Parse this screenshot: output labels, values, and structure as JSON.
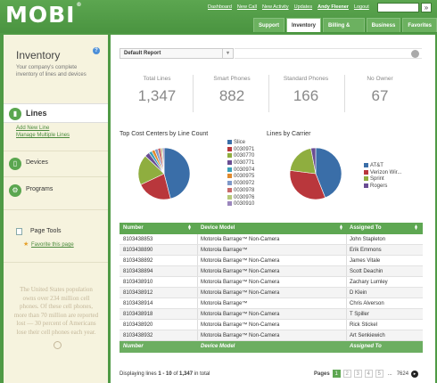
{
  "header": {
    "logo": "MOBI",
    "logo_mark": "®",
    "links": [
      "Dashboard",
      "New Call",
      "New Activity",
      "Updates"
    ],
    "user": "Andy Fleener",
    "logout": "Logout",
    "search_button": "»",
    "tabs": [
      "Support",
      "Inventory",
      "Billing & Usage",
      "Business",
      "Favorites"
    ],
    "active_tab": "Inventory"
  },
  "sidebar": {
    "title": "Inventory",
    "description": "Your company's complete inventory of lines and devices",
    "nav": {
      "lines": "Lines",
      "devices": "Devices",
      "programs": "Programs"
    },
    "links": [
      "Add New Line",
      "Manage Multiple Lines"
    ],
    "page_tools": {
      "title": "Page Tools",
      "favorite": "Favorite this page"
    },
    "fact": "The United States population owns over 234 million cell phones. Of these cell phones, more than 70 million are reported lost — 30 percent of Americans lose their cell phones each year."
  },
  "main": {
    "report_select": "Default Report",
    "kpis": [
      {
        "label": "Total Lines",
        "value": "1,347"
      },
      {
        "label": "Smart Phones",
        "value": "882"
      },
      {
        "label": "Standard Phones",
        "value": "166"
      },
      {
        "label": "No Owner",
        "value": "67"
      }
    ],
    "chart1_title": "Top Cost Centers by Line Count",
    "chart2_title": "Lines by Carrier",
    "table": {
      "columns": [
        "Number",
        "Device Model",
        "Assigned To"
      ],
      "rows": [
        [
          "8103438853",
          "Motorola Barrage™ Non-Camera",
          "John Stapleton"
        ],
        [
          "8103438890",
          "Motorola Barrage™",
          "Erik Emmons"
        ],
        [
          "8103438892",
          "Motorola Barrage™ Non-Camera",
          "James Vitale"
        ],
        [
          "8103438894",
          "Motorola Barrage™ Non-Camera",
          "Scott Deachin"
        ],
        [
          "8103438910",
          "Motorola Barrage™ Non-Camera",
          "Zachary Lumley"
        ],
        [
          "8103438912",
          "Motorola Barrage™ Non-Camera",
          "D Klein"
        ],
        [
          "8103438914",
          "Motorola Barrage™",
          "Chris Alverson"
        ],
        [
          "8103438918",
          "Motorola Barrage™ Non-Camera",
          "T Spiller"
        ],
        [
          "8103438920",
          "Motorola Barrage™ Non-Camera",
          "Rick Stickel"
        ],
        [
          "8103438932",
          "Motorola Barrage™ Non-Camera",
          "Art Senkiewich"
        ]
      ]
    },
    "pager_info_prefix": "Displaying lines ",
    "pager_info_range": "1 - 10",
    "pager_info_mid": " of ",
    "pager_info_total": "1,347",
    "pager_info_suffix": " in total",
    "pager_label": "Pages",
    "pages": [
      "1",
      "2",
      "3",
      "4",
      "5",
      "...",
      "7624"
    ]
  },
  "chart_data": [
    {
      "type": "pie",
      "title": "Top Cost Centers by Line Count",
      "categories": [
        "Slice",
        "0030971",
        "0030770",
        "0030771",
        "0030974",
        "0030975",
        "0030972",
        "0030978",
        "0030976",
        "0030910"
      ],
      "values": [
        46,
        22,
        19,
        3,
        2,
        2,
        2,
        2,
        1,
        1
      ],
      "colors": [
        "#3a6ea8",
        "#b9373c",
        "#8fae3f",
        "#6a4d93",
        "#3aa0b8",
        "#e08a2e",
        "#7f99c9",
        "#c96a6a",
        "#b5c97a",
        "#9b86bd"
      ]
    },
    {
      "type": "pie",
      "title": "Lines by Carrier",
      "categories": [
        "AT&T",
        "Verizon Wir...",
        "Sprint",
        "Rogers"
      ],
      "values": [
        44,
        33,
        20,
        3
      ],
      "colors": [
        "#3a6ea8",
        "#b9373c",
        "#8fae3f",
        "#6a4d93"
      ]
    }
  ]
}
